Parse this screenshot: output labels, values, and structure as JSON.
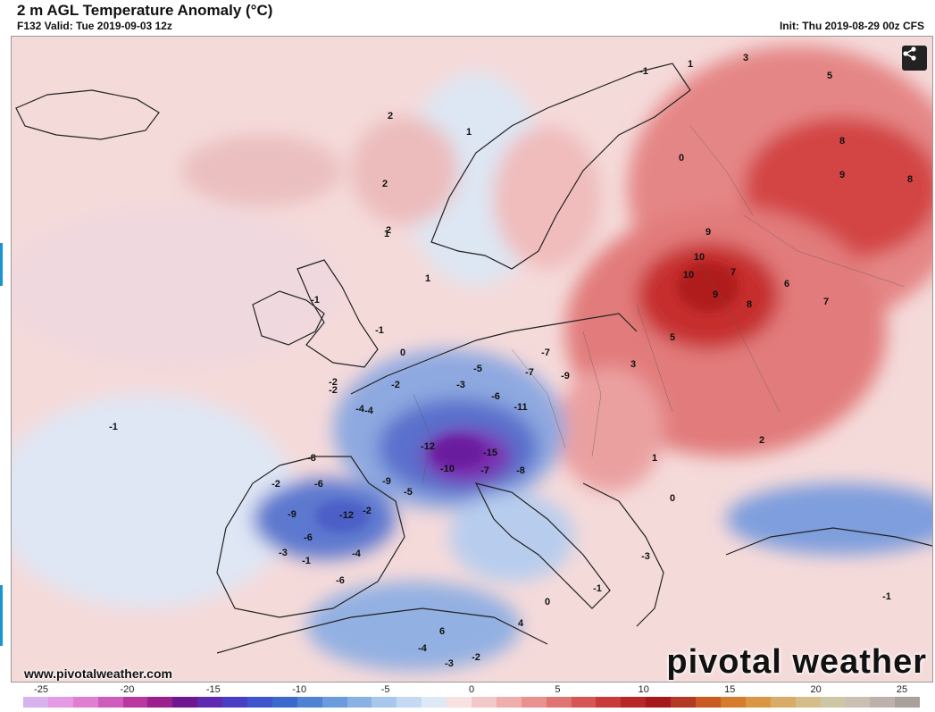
{
  "header": {
    "title": "2 m AGL Temperature Anomaly (°C)",
    "valid": "F132 Valid: Tue 2019-09-03 12z",
    "init": "Init: Thu 2019-08-29 00z CFS"
  },
  "footer": {
    "site_url": "www.pivotalweather.com",
    "brand": "pivotal weather"
  },
  "share_icon": "share-icon",
  "colorbar": {
    "ticks": [
      "-25",
      "-20",
      "-15",
      "-10",
      "-5",
      "0",
      "5",
      "10",
      "15",
      "20",
      "25"
    ],
    "colors": [
      "#d6b3ec",
      "#e49be3",
      "#e07fd0",
      "#cf5bbd",
      "#b8389f",
      "#9b1f8c",
      "#6f1790",
      "#5e2ab0",
      "#4a3fc4",
      "#3f55cc",
      "#3c6acc",
      "#4f82d3",
      "#6a9bdc",
      "#89b1e3",
      "#a9c7ec",
      "#c6d9f3",
      "#dfe8f7",
      "#f7e1e1",
      "#f3c8c8",
      "#efadad",
      "#e99090",
      "#e07373",
      "#d65656",
      "#c93a3a",
      "#b82727",
      "#a5191d",
      "#b33a22",
      "#c85a22",
      "#d67a2c",
      "#d99645",
      "#d8ab66",
      "#d4bd88",
      "#cec7a6",
      "#c9c0b3",
      "#bdb2ab",
      "#aaa09b"
    ]
  },
  "map": {
    "ocean_color": "#f6d9d9",
    "cold_core": "#8a2aa8",
    "warm_core": "#c72b2b",
    "labels": [
      {
        "t": "-1",
        "id": "lbl-1"
      },
      {
        "t": "1",
        "id": "lbl-2"
      },
      {
        "t": "3",
        "id": "lbl-3"
      },
      {
        "t": "5",
        "id": "lbl-4"
      },
      {
        "t": "8",
        "id": "lbl-5"
      },
      {
        "t": "9",
        "id": "lbl-6"
      },
      {
        "t": "8",
        "id": "lbl-7"
      },
      {
        "t": "2",
        "id": "lbl-8"
      },
      {
        "t": "1",
        "id": "lbl-9"
      },
      {
        "t": "2",
        "id": "lbl-10"
      },
      {
        "t": "1",
        "id": "lbl-11"
      },
      {
        "t": "1",
        "id": "lbl-12"
      },
      {
        "t": "0",
        "id": "lbl-13"
      },
      {
        "t": "-1",
        "id": "lbl-14"
      },
      {
        "t": "9",
        "id": "lbl-15"
      },
      {
        "t": "10",
        "id": "lbl-16"
      },
      {
        "t": "10",
        "id": "lbl-17"
      },
      {
        "t": "9",
        "id": "lbl-18"
      },
      {
        "t": "7",
        "id": "lbl-19"
      },
      {
        "t": "8",
        "id": "lbl-20"
      },
      {
        "t": "6",
        "id": "lbl-21"
      },
      {
        "t": "7",
        "id": "lbl-22"
      },
      {
        "t": "5",
        "id": "lbl-23"
      },
      {
        "t": "3",
        "id": "lbl-24"
      },
      {
        "t": "-3",
        "id": "lbl-25"
      },
      {
        "t": "-7",
        "id": "lbl-26"
      },
      {
        "t": "-9",
        "id": "lbl-27"
      },
      {
        "t": "-11",
        "id": "lbl-28"
      },
      {
        "t": "-12",
        "id": "lbl-29"
      },
      {
        "t": "-15",
        "id": "lbl-30"
      },
      {
        "t": "-10",
        "id": "lbl-31"
      },
      {
        "t": "-7",
        "id": "lbl-32"
      },
      {
        "t": "-8",
        "id": "lbl-33"
      },
      {
        "t": "-12",
        "id": "lbl-34"
      },
      {
        "t": "-9",
        "id": "lbl-35"
      },
      {
        "t": "-6",
        "id": "lbl-36"
      },
      {
        "t": "-4",
        "id": "lbl-37"
      },
      {
        "t": "-2",
        "id": "lbl-38"
      },
      {
        "t": "-5",
        "id": "lbl-39"
      },
      {
        "t": "-7",
        "id": "lbl-40"
      },
      {
        "t": "-6",
        "id": "lbl-41"
      },
      {
        "t": "-4",
        "id": "lbl-42"
      },
      {
        "t": "-2",
        "id": "lbl-43"
      },
      {
        "t": "0",
        "id": "lbl-44"
      },
      {
        "t": "-1",
        "id": "lbl-45"
      },
      {
        "t": "2",
        "id": "lbl-46"
      },
      {
        "t": "-2",
        "id": "lbl-47"
      },
      {
        "t": "-3",
        "id": "lbl-48"
      },
      {
        "t": "-4",
        "id": "lbl-49"
      },
      {
        "t": "-6",
        "id": "lbl-50"
      },
      {
        "t": "-1",
        "id": "lbl-51"
      },
      {
        "t": "0",
        "id": "lbl-52"
      },
      {
        "t": "-1",
        "id": "lbl-53"
      },
      {
        "t": "-3",
        "id": "lbl-54"
      },
      {
        "t": "-8",
        "id": "lbl-55"
      },
      {
        "t": "-5",
        "id": "lbl-56"
      },
      {
        "t": "-2",
        "id": "lbl-57"
      },
      {
        "t": "-9",
        "id": "lbl-58"
      },
      {
        "t": "-6",
        "id": "lbl-59"
      },
      {
        "t": "-1",
        "id": "lbl-60"
      },
      {
        "t": "-2",
        "id": "lbl-61"
      },
      {
        "t": "-3",
        "id": "lbl-62"
      },
      {
        "t": "-4",
        "id": "lbl-63"
      },
      {
        "t": "-2",
        "id": "lbl-64"
      },
      {
        "t": "6",
        "id": "lbl-65"
      },
      {
        "t": "4",
        "id": "lbl-66"
      },
      {
        "t": "2",
        "id": "lbl-67"
      },
      {
        "t": "1",
        "id": "lbl-68"
      },
      {
        "t": "0",
        "id": "lbl-69"
      },
      {
        "t": "-1",
        "id": "lbl-70"
      }
    ]
  }
}
